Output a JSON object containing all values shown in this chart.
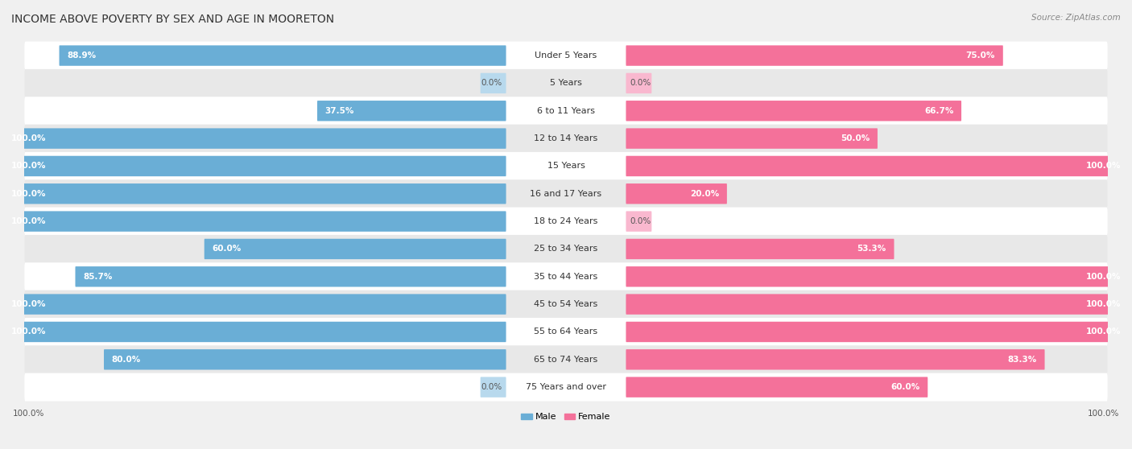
{
  "title": "INCOME ABOVE POVERTY BY SEX AND AGE IN MOORETON",
  "source": "Source: ZipAtlas.com",
  "categories": [
    "Under 5 Years",
    "5 Years",
    "6 to 11 Years",
    "12 to 14 Years",
    "15 Years",
    "16 and 17 Years",
    "18 to 24 Years",
    "25 to 34 Years",
    "35 to 44 Years",
    "45 to 54 Years",
    "55 to 64 Years",
    "65 to 74 Years",
    "75 Years and over"
  ],
  "male_values": [
    88.9,
    0.0,
    37.5,
    100.0,
    100.0,
    100.0,
    100.0,
    60.0,
    85.7,
    100.0,
    100.0,
    80.0,
    0.0
  ],
  "female_values": [
    75.0,
    0.0,
    66.7,
    50.0,
    100.0,
    20.0,
    0.0,
    53.3,
    100.0,
    100.0,
    100.0,
    83.3,
    60.0
  ],
  "male_color": "#6aaed6",
  "female_color": "#f4719a",
  "male_color_light": "#b8d9ed",
  "female_color_light": "#f9b8cf",
  "male_label": "Male",
  "female_label": "Female",
  "background_color": "#f0f0f0",
  "row_bg_even": "#ffffff",
  "row_bg_odd": "#e8e8e8",
  "title_fontsize": 10,
  "label_fontsize": 8,
  "value_fontsize": 7.5,
  "source_fontsize": 7.5,
  "axis_label_fontsize": 7.5,
  "max_value": 100.0
}
